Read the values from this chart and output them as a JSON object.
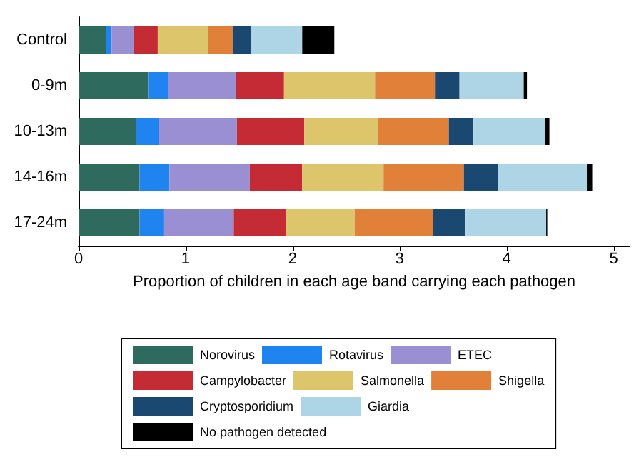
{
  "chart_data": {
    "type": "bar",
    "orientation": "horizontal",
    "stacked": true,
    "xlabel": "Proportion of children in each age band carrying each pathogen",
    "categories": [
      "Control",
      "0-9m",
      "10-13m",
      "14-16m",
      "17-24m"
    ],
    "series": [
      {
        "name": "Norovirus",
        "color": "#2e6b5e",
        "values": [
          0.26,
          0.65,
          0.54,
          0.57,
          0.57
        ]
      },
      {
        "name": "Rotavirus",
        "color": "#1f84f0",
        "values": [
          0.05,
          0.19,
          0.21,
          0.28,
          0.23
        ]
      },
      {
        "name": "ETEC",
        "color": "#9b8fd4",
        "values": [
          0.21,
          0.63,
          0.73,
          0.75,
          0.65
        ]
      },
      {
        "name": "Campylobacter",
        "color": "#c42b35",
        "values": [
          0.22,
          0.45,
          0.63,
          0.49,
          0.49
        ]
      },
      {
        "name": "Salmonella",
        "color": "#dcc56a",
        "values": [
          0.47,
          0.85,
          0.69,
          0.76,
          0.64
        ]
      },
      {
        "name": "Shigella",
        "color": "#e08039",
        "values": [
          0.23,
          0.56,
          0.66,
          0.75,
          0.73
        ]
      },
      {
        "name": "Cryptosporidium",
        "color": "#1b4870",
        "values": [
          0.17,
          0.23,
          0.23,
          0.32,
          0.3
        ]
      },
      {
        "name": "Giardia",
        "color": "#aed5e6",
        "values": [
          0.48,
          0.6,
          0.67,
          0.83,
          0.76
        ]
      },
      {
        "name": "No pathogen detected",
        "color": "#000000",
        "values": [
          0.3,
          0.03,
          0.04,
          0.05,
          0.01
        ]
      }
    ],
    "xlim": [
      0,
      5.15
    ],
    "xticks": [
      0,
      1,
      2,
      3,
      4,
      5
    ],
    "grid": false,
    "legend": "bottom"
  }
}
